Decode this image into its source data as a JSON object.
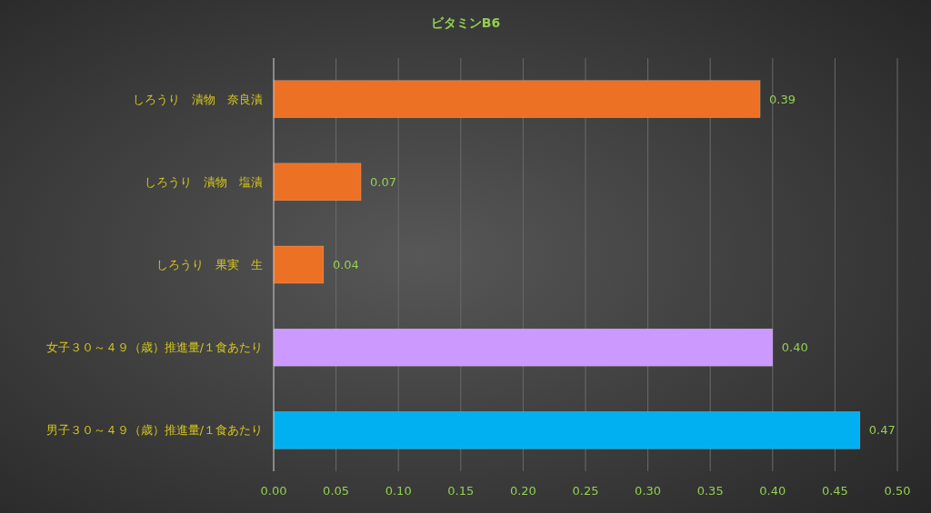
{
  "chart_data": {
    "type": "bar",
    "orientation": "horizontal",
    "title": "ビタミンB6",
    "categories": [
      "しろうり　漬物　奈良漬",
      "しろうり　漬物　塩漬",
      "しろうり　果実　生",
      "女子３０～４９（歳）推進量/１食あたり",
      "男子３０～４９（歳）推進量/１食あたり"
    ],
    "values": [
      0.39,
      0.07,
      0.04,
      0.4,
      0.47
    ],
    "colors": [
      "#ed7125",
      "#ed7125",
      "#ed7125",
      "#cc99ff",
      "#00b0f0"
    ],
    "xlim": [
      0,
      0.5
    ],
    "xticks": [
      {
        "value": 0,
        "label": "0.00"
      },
      {
        "value": 0.05,
        "label": "0.05"
      },
      {
        "value": 0.1,
        "label": "0.10"
      },
      {
        "value": 0.15,
        "label": "0.15"
      },
      {
        "value": 0.2,
        "label": "0.20"
      },
      {
        "value": 0.25,
        "label": "0.25"
      },
      {
        "value": 0.3,
        "label": "0.30"
      },
      {
        "value": 0.35,
        "label": "0.35"
      },
      {
        "value": 0.4,
        "label": "0.40"
      },
      {
        "value": 0.45,
        "label": "0.45"
      },
      {
        "value": 0.5,
        "label": "0.50"
      }
    ],
    "value_labels": [
      "0.39",
      "0.07",
      "0.04",
      "0.40",
      "0.47"
    ],
    "grid": "x"
  }
}
